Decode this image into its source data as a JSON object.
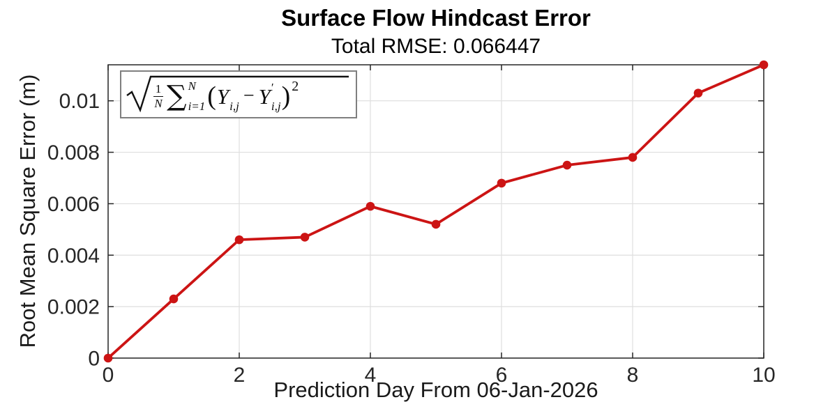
{
  "chart_data": {
    "type": "line",
    "title": "Surface Flow Hindcast Error",
    "subtitle": "Total RMSE: 0.066447",
    "xlabel": "Prediction Day From 06-Jan-2026",
    "ylabel": "Root Mean Square Error (m)",
    "x": [
      0,
      1,
      2,
      3,
      4,
      5,
      6,
      7,
      8,
      9,
      10
    ],
    "values": [
      0,
      0.0023,
      0.0046,
      0.0047,
      0.0059,
      0.0052,
      0.0068,
      0.0075,
      0.0078,
      0.0103,
      0.0114
    ],
    "xlim": [
      0,
      10
    ],
    "ylim": [
      0,
      0.0114
    ],
    "x_ticks": [
      0,
      2,
      4,
      6,
      8,
      10
    ],
    "x_tick_labels": [
      "0",
      "2",
      "4",
      "6",
      "8",
      "10"
    ],
    "y_ticks": [
      0,
      0.002,
      0.004,
      0.006,
      0.008,
      0.01
    ],
    "y_tick_labels": [
      "0",
      "0.002",
      "0.004",
      "0.006",
      "0.008",
      "0.01"
    ],
    "grid": true,
    "legend_position": "northwest",
    "marker": "filled-circle",
    "annotation": "sqrt( (1/N) * sum_{i=1}^{N} (Y_{i,j} - Y'_{i,j})^2 )"
  },
  "formula": {
    "frac_num": "1",
    "frac_den": "N",
    "sigma": "∑",
    "sum_sup": "N",
    "sum_sub": "i=1",
    "open_paren": "(",
    "term1": "Y",
    "term1_sub": "i,j",
    "minus": "−",
    "term2": "Y",
    "term2_prime": "′",
    "term2_sub": "i,j",
    "close_paren": ")",
    "exponent": "2"
  },
  "colors": {
    "line": "#cc1414",
    "grid": "#dedede",
    "axis": "#262626",
    "tick_text": "#262626",
    "legend_border": "#7f7f7f",
    "background": "#ffffff"
  }
}
